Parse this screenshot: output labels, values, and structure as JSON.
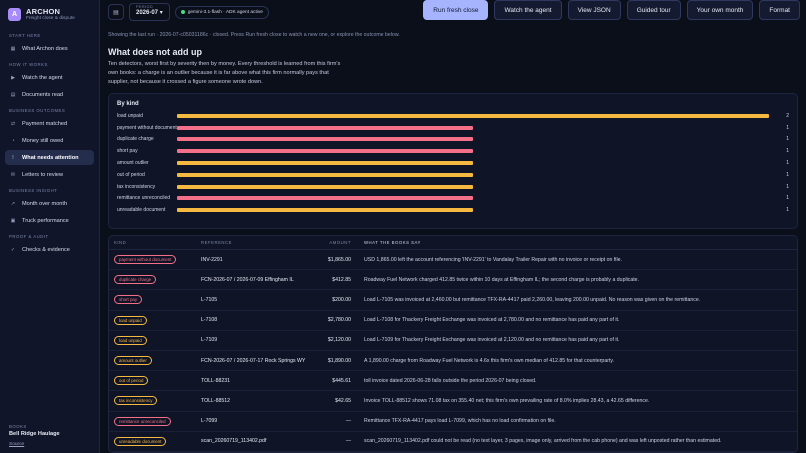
{
  "brand": {
    "name": "ARCHON",
    "subtitle": "Freight close & dispute"
  },
  "sidebar": {
    "sections": [
      {
        "title": "START HERE",
        "items": [
          {
            "label": "What Archon does",
            "icon": "grid-icon",
            "glyph": "▦",
            "active": false
          }
        ]
      },
      {
        "title": "HOW IT WORKS",
        "items": [
          {
            "label": "Watch the agent",
            "icon": "play-icon",
            "glyph": "▶",
            "active": false
          },
          {
            "label": "Documents read",
            "icon": "document-icon",
            "glyph": "▤",
            "active": false
          }
        ]
      },
      {
        "title": "BUSINESS OUTCOMES",
        "items": [
          {
            "label": "Payment matched",
            "icon": "link-icon",
            "glyph": "⇄",
            "active": false
          },
          {
            "label": "Money still owed",
            "icon": "clock-icon",
            "glyph": "◔",
            "active": false
          },
          {
            "label": "What needs attention",
            "icon": "alert-icon",
            "glyph": "!",
            "active": true
          },
          {
            "label": "Letters to review",
            "icon": "mail-icon",
            "glyph": "✉",
            "active": false
          }
        ]
      },
      {
        "title": "BUSINESS INSIGHT",
        "items": [
          {
            "label": "Month over month",
            "icon": "trend-icon",
            "glyph": "↗",
            "active": false
          },
          {
            "label": "Truck performance",
            "icon": "truck-icon",
            "glyph": "▣",
            "active": false
          }
        ]
      },
      {
        "title": "PROOF & AUDIT",
        "items": [
          {
            "label": "Checks & evidence",
            "icon": "check-icon",
            "glyph": "✓",
            "active": false
          }
        ]
      }
    ],
    "footer": {
      "books_label": "BOOKS",
      "books_value": "Bell Ridge Haulage",
      "source_link": "Source"
    }
  },
  "topbar": {
    "menu_icon": "▤",
    "period_label": "PERIOD",
    "period_value": "2026-07",
    "period_caret": "▾",
    "model_chip": "gemini-3.1-flash · ADK agent active",
    "buttons": [
      "Run fresh close",
      "Watch the agent",
      "View JSON",
      "Guided tour",
      "Your own month",
      "Format"
    ]
  },
  "hint": "Showing the last run · 2026-07-c05031186c · closed. Press Run fresh close to watch a new one, or explore the outcome below.",
  "heading": "What does not add up",
  "lede": "Ten detectors, worst first by severity then by money. Every threshold is learned from this firm's own books: a charge is an outlier because it is far above what this firm normally pays that supplier, not because it crossed a figure someone wrote down.",
  "chart_data": {
    "type": "bar",
    "title": "By kind",
    "orientation": "horizontal",
    "categories": [
      "load unpaid",
      "payment without document",
      "duplicate charge",
      "short pay",
      "amount outlier",
      "out of period",
      "tax inconsistency",
      "remittance unreconciled",
      "unreadable document"
    ],
    "values": [
      2,
      1,
      1,
      1,
      1,
      1,
      1,
      1,
      1
    ],
    "xlim": [
      0,
      2
    ],
    "colors": [
      "#f5b942",
      "#f47088",
      "#f47088",
      "#f47088",
      "#f5b942",
      "#f5b942",
      "#f5b942",
      "#f47088",
      "#f5b942"
    ]
  },
  "table": {
    "headers": [
      "KIND",
      "REFERENCE",
      "AMOUNT",
      "WHAT THE BOOKS SAY"
    ],
    "rows": [
      {
        "kind": "payment without document",
        "color": "#f47088",
        "ref": "INV-2291",
        "amount": "$1,865.00",
        "say": "USD 1,865.00 left the account referencing 'INV-2291' to Vandalay Trailer Repair with no invoice or receipt on file."
      },
      {
        "kind": "duplicate charge",
        "color": "#f47088",
        "ref": "FCN-2026-07 / 2026-07-09 Effingham IL",
        "amount": "$412.85",
        "say": "Roadway Fuel Network charged 412.85 twice within 10 days at Effingham IL; the second charge is probably a duplicate."
      },
      {
        "kind": "short pay",
        "color": "#f47088",
        "ref": "L-7105",
        "amount": "$200.00",
        "say": "Load L-7105 was invoiced at 2,460.00 but remittance TFX-RA-4417 paid 2,260.00, leaving 200.00 unpaid. No reason was given on the remittance."
      },
      {
        "kind": "load unpaid",
        "color": "#f5b942",
        "ref": "L-7108",
        "amount": "$2,780.00",
        "say": "Load L-7108 for Thackery Freight Exchange was invoiced at 2,780.00 and no remittance has paid any part of it."
      },
      {
        "kind": "load unpaid",
        "color": "#f5b942",
        "ref": "L-7109",
        "amount": "$2,120.00",
        "say": "Load L-7109 for Thackery Freight Exchange was invoiced at 2,120.00 and no remittance has paid any part of it."
      },
      {
        "kind": "amount outlier",
        "color": "#f5b942",
        "ref": "FCN-2026-07 / 2026-07-17 Rock Springs WY",
        "amount": "$1,890.00",
        "say": "A 1,890.00 charge from Roadway Fuel Network is 4.6x this firm's own median of 412.85 for that counterparty."
      },
      {
        "kind": "out of period",
        "color": "#f5b942",
        "ref": "TOLL-88231",
        "amount": "$445.61",
        "say": "toll invoice dated 2026-06-28 falls outside the period 2026-07 being closed."
      },
      {
        "kind": "tax inconsistency",
        "color": "#f5b942",
        "ref": "TOLL-88512",
        "amount": "$42.65",
        "say": "Invoice TOLL-88512 shows 71.08 tax on 355.40 net; this firm's own prevailing rate of 8.0% implies 28.43, a 42.65 difference."
      },
      {
        "kind": "remittance unreconciled",
        "color": "#f47088",
        "ref": "L-7099",
        "amount": "—",
        "say": "Remittance TFX-RA-4417 pays load L-7099, which has no load confirmation on file."
      },
      {
        "kind": "unreadable document",
        "color": "#f5b942",
        "ref": "scan_20260719_113402.pdf",
        "amount": "—",
        "say": "scan_20260719_113402.pdf could not be read (no text layer, 3 pages, image only, arrived from the cab phone) and was left unposted rather than estimated."
      }
    ]
  }
}
